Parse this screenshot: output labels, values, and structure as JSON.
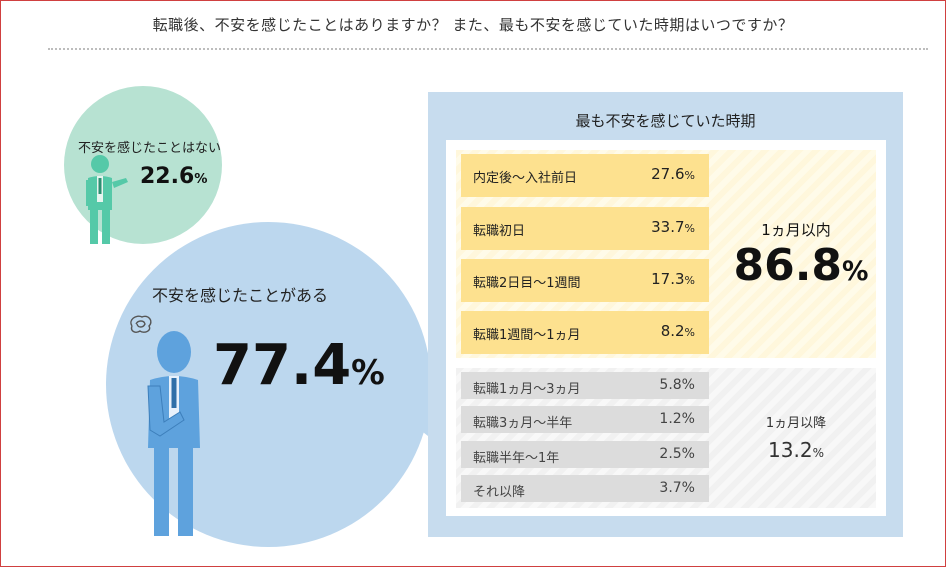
{
  "header": {
    "title": "転職後、不安を感じたことはありますか？ また、最も不安を感じていた時期はいつですか？"
  },
  "chart_data": [
    {
      "type": "pie",
      "categories": [
        "不安を感じたことはない",
        "不安を感じたことがある"
      ],
      "values": [
        22.6,
        77.4
      ],
      "unit": "%"
    },
    {
      "type": "table",
      "title": "最も不安を感じていた時期",
      "rows": [
        {
          "label": "内定後～入社前日",
          "value": 27.6,
          "display": "27.6",
          "group": "within"
        },
        {
          "label": "転職初日",
          "value": 33.7,
          "display": "33.7",
          "group": "within"
        },
        {
          "label": "転職2日目～1週間",
          "value": 17.3,
          "display": "17.3",
          "group": "within"
        },
        {
          "label": "転職1週間～1ヵ月",
          "value": 8.2,
          "display": "8.2",
          "group": "within"
        },
        {
          "label": "転職1ヵ月～3ヵ月",
          "value": 5.8,
          "display": "5.8%",
          "group": "after"
        },
        {
          "label": "転職3ヵ月～半年",
          "value": 1.2,
          "display": "1.2%",
          "group": "after"
        },
        {
          "label": "転職半年～1年",
          "value": 2.5,
          "display": "2.5%",
          "group": "after"
        },
        {
          "label": "それ以降",
          "value": 3.7,
          "display": "3.7%",
          "group": "after"
        }
      ],
      "summary": [
        {
          "label": "1ヵ月以内",
          "value": "86.8"
        },
        {
          "label": "1ヵ月以降",
          "value": "13.2"
        }
      ],
      "unit": "%"
    }
  ],
  "labels": {
    "no": "不安を感じたことはない",
    "no_value": "22.6",
    "yes": "不安を感じたことがある",
    "yes_value": "77.4",
    "pct": "%"
  },
  "colors": {
    "small_circle": "#b7e2d2",
    "big_circle": "#bcd7ee",
    "highlight_row": "#fde18f",
    "grey_row": "#dcdcdc",
    "panel": "#c7dcee",
    "frame": "#d04040"
  },
  "icons": [
    "man-pointing-icon",
    "worried-man-icon",
    "worry-scribble-icon"
  ]
}
